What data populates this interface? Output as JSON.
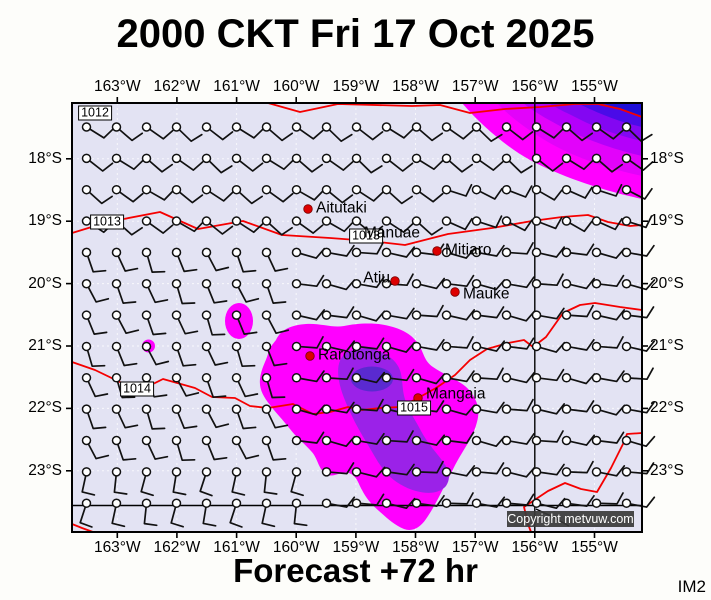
{
  "header": {
    "title": "2000 CKT Fri 17 Oct 2025"
  },
  "footer": {
    "forecast_label": "Forecast +72 hr",
    "model_tag": "IM2"
  },
  "map": {
    "copyright": "Copyright metvuw.com",
    "lon_labels": [
      "163°W",
      "162°W",
      "161°W",
      "160°W",
      "159°W",
      "158°W",
      "157°W",
      "156°W",
      "155°W"
    ],
    "lat_labels": [
      "18°S",
      "19°S",
      "20°S",
      "21°S",
      "22°S",
      "23°S"
    ],
    "isobar_labels": [
      {
        "text": "1012"
      },
      {
        "text": "1013"
      },
      {
        "text": "1013"
      },
      {
        "text": "1014"
      },
      {
        "text": "1015"
      }
    ],
    "places": [
      {
        "name": "Aitutaki"
      },
      {
        "name": "Manuae"
      },
      {
        "name": "Mitiaro"
      },
      {
        "name": "Atiu"
      },
      {
        "name": "Mauke"
      },
      {
        "name": "Rarotonga"
      },
      {
        "name": "Mangaia"
      }
    ]
  },
  "colors": {
    "sea": "#e3e3f3",
    "isobar_red": "#f50000",
    "place_marker_red": "#dd0000",
    "rain_scale": [
      "#ff00ff",
      "#e203fa",
      "#b400fa",
      "#8307f2",
      "#4a0be8",
      "#1e0ed8"
    ],
    "rain_inner_purple": "#9b22e8",
    "rain_core_blue": "#5a2ad0"
  }
}
